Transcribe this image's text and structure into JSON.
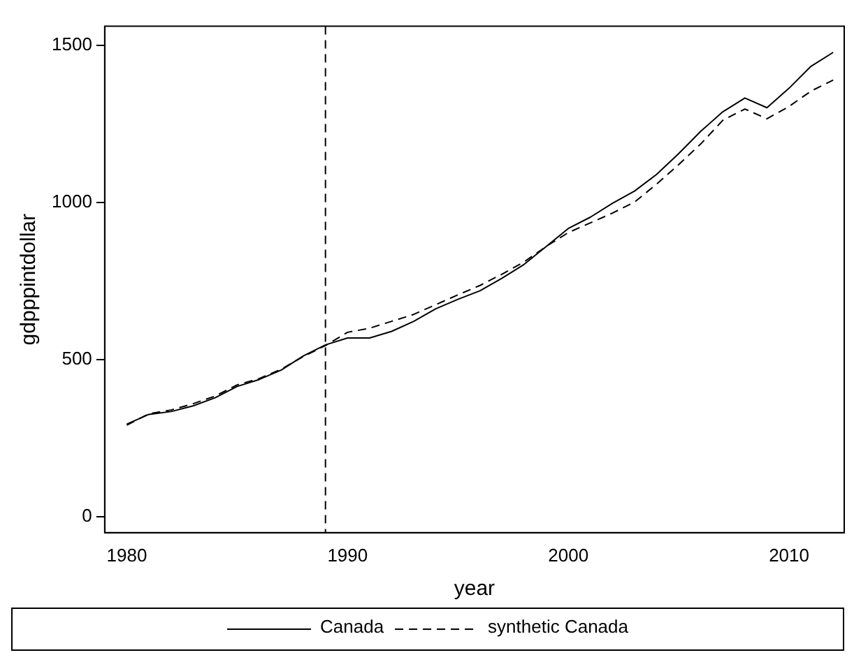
{
  "chart_data": {
    "type": "line",
    "xlabel": "year",
    "ylabel": "gdpppintdollar",
    "x": [
      1980,
      1981,
      1982,
      1983,
      1984,
      1985,
      1986,
      1987,
      1988,
      1989,
      1990,
      1991,
      1992,
      1993,
      1994,
      1995,
      1996,
      1997,
      1998,
      1999,
      2000,
      2001,
      2002,
      2003,
      2004,
      2005,
      2006,
      2007,
      2008,
      2009,
      2010,
      2011,
      2012
    ],
    "series": [
      {
        "name": "Canada",
        "color": "#000000",
        "line_style": "solid",
        "values": [
          295,
          326,
          335,
          353,
          379,
          415,
          437,
          467,
          512,
          547,
          569,
          569,
          590,
          622,
          662,
          692,
          719,
          759,
          803,
          860,
          917,
          953,
          997,
          1036,
          1089,
          1155,
          1226,
          1288,
          1332,
          1301,
          1363,
          1433,
          1477
        ]
      },
      {
        "name": "synthetic Canada",
        "color": "#000000",
        "line_style": "dashed",
        "values": [
          292,
          328,
          340,
          360,
          384,
          420,
          440,
          470,
          510,
          545,
          587,
          600,
          622,
          644,
          675,
          706,
          736,
          772,
          811,
          860,
          904,
          935,
          966,
          1001,
          1058,
          1120,
          1186,
          1261,
          1297,
          1266,
          1305,
          1354,
          1389
        ]
      }
    ],
    "xlim": [
      1979,
      2012.5
    ],
    "xticks": [
      1980,
      1990,
      2000,
      2010
    ],
    "ylim": [
      -50,
      1560
    ],
    "yticks": [
      0,
      500,
      1000,
      1500
    ],
    "ref_lines": [
      {
        "axis": "x",
        "value": 1989,
        "line_style": "dashed",
        "color": "#000000"
      }
    ],
    "grid": false,
    "legend": "bottom",
    "marker": "none"
  }
}
